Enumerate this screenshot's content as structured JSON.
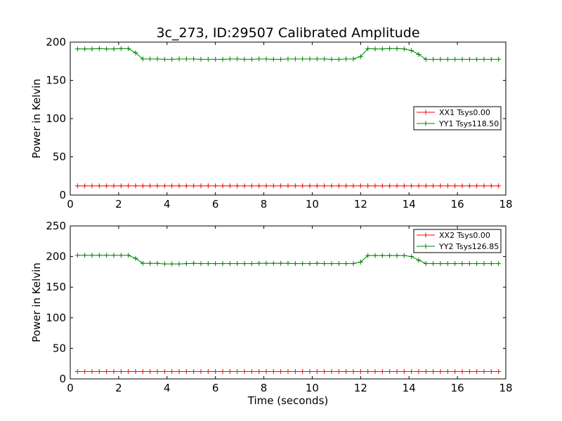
{
  "figure": {
    "title": "3c_273, ID:29507 Calibrated Amplitude",
    "xlabel": "Time (seconds)"
  },
  "chart_data": [
    {
      "type": "line",
      "ylabel": "Power in Kelvin",
      "xlim": [
        0,
        18
      ],
      "ylim": [
        0,
        200
      ],
      "xticks": [
        0,
        2,
        4,
        6,
        8,
        10,
        12,
        14,
        16,
        18
      ],
      "yticks": [
        0,
        50,
        100,
        150,
        200
      ],
      "grid": false,
      "legend_position": "center-right",
      "x": [
        0.3,
        0.6,
        0.9,
        1.2,
        1.5,
        1.8,
        2.1,
        2.4,
        2.7,
        3.0,
        3.3,
        3.6,
        3.9,
        4.2,
        4.5,
        4.8,
        5.1,
        5.4,
        5.7,
        6.0,
        6.3,
        6.6,
        6.9,
        7.2,
        7.5,
        7.8,
        8.1,
        8.4,
        8.7,
        9.0,
        9.3,
        9.6,
        9.9,
        10.2,
        10.5,
        10.8,
        11.1,
        11.4,
        11.7,
        12.0,
        12.3,
        12.6,
        12.9,
        13.2,
        13.5,
        13.8,
        14.1,
        14.4,
        14.7,
        15.0,
        15.3,
        15.6,
        15.9,
        16.2,
        16.5,
        16.8,
        17.1,
        17.4,
        17.7
      ],
      "series": [
        {
          "name": "XX1 Tsys0.00",
          "color": "#ff0000",
          "values": [
            12,
            12,
            12,
            12,
            12,
            12,
            12,
            12,
            12,
            12,
            12,
            12,
            12,
            12,
            12,
            12,
            12,
            12,
            12,
            12,
            12,
            12,
            12,
            12,
            12,
            12,
            12,
            12,
            12,
            12,
            12,
            12,
            12,
            12,
            12,
            12,
            12,
            12,
            12,
            12,
            12,
            12,
            12,
            12,
            12,
            12,
            12,
            12,
            12,
            12,
            12,
            12,
            12,
            12,
            12,
            12,
            12,
            12,
            12
          ]
        },
        {
          "name": "YY1 Tsys118.50",
          "color": "#008000",
          "values": [
            191,
            191,
            191,
            191.5,
            191,
            191,
            191.5,
            191.5,
            186,
            178,
            178,
            178,
            177.5,
            177.5,
            178,
            178,
            178,
            177.5,
            177.5,
            177.5,
            177.5,
            178,
            178,
            177.5,
            177.5,
            178,
            178,
            177.5,
            177.5,
            178,
            178,
            178,
            178,
            178,
            178,
            177.5,
            177.5,
            178,
            178,
            181,
            191.5,
            191,
            191,
            191.5,
            191.5,
            191,
            189,
            184,
            177.5,
            177.5,
            177.5,
            177.5,
            177.5,
            177.5,
            177.5,
            177.5,
            177.5,
            177.5,
            177.5
          ]
        }
      ]
    },
    {
      "type": "line",
      "ylabel": "Power in Kelvin",
      "xlabel": "Time (seconds)",
      "xlim": [
        0,
        18
      ],
      "ylim": [
        0,
        250
      ],
      "xticks": [
        0,
        2,
        4,
        6,
        8,
        10,
        12,
        14,
        16,
        18
      ],
      "yticks": [
        0,
        50,
        100,
        150,
        200,
        250
      ],
      "grid": false,
      "legend_position": "top-right",
      "x": [
        0.3,
        0.6,
        0.9,
        1.2,
        1.5,
        1.8,
        2.1,
        2.4,
        2.7,
        3.0,
        3.3,
        3.6,
        3.9,
        4.2,
        4.5,
        4.8,
        5.1,
        5.4,
        5.7,
        6.0,
        6.3,
        6.6,
        6.9,
        7.2,
        7.5,
        7.8,
        8.1,
        8.4,
        8.7,
        9.0,
        9.3,
        9.6,
        9.9,
        10.2,
        10.5,
        10.8,
        11.1,
        11.4,
        11.7,
        12.0,
        12.3,
        12.6,
        12.9,
        13.2,
        13.5,
        13.8,
        14.1,
        14.4,
        14.7,
        15.0,
        15.3,
        15.6,
        15.9,
        16.2,
        16.5,
        16.8,
        17.1,
        17.4,
        17.7
      ],
      "series": [
        {
          "name": "XX2 Tsys0.00",
          "color": "#ff0000",
          "values": [
            12,
            12,
            12,
            12,
            12,
            12,
            12,
            12,
            12,
            12,
            12,
            12,
            12,
            12,
            12,
            12,
            12,
            12,
            12,
            12,
            12,
            12,
            12,
            12,
            12,
            12,
            12,
            12,
            12,
            12,
            12,
            12,
            12,
            12,
            12,
            12,
            12,
            12,
            12,
            12,
            12,
            12,
            12,
            12,
            12,
            12,
            12,
            12,
            12,
            12,
            12,
            12,
            12,
            12,
            12,
            12,
            12,
            12,
            12
          ]
        },
        {
          "name": "YY2 Tsys126.85",
          "color": "#008000",
          "values": [
            202,
            202,
            202,
            202,
            202,
            202,
            202,
            202,
            197,
            189,
            189,
            189,
            188,
            188,
            188,
            188.5,
            189,
            188.5,
            188.5,
            188.5,
            188.5,
            188.5,
            188.5,
            188.5,
            188.5,
            189,
            189,
            189,
            189,
            189,
            188.5,
            188.5,
            188.5,
            189,
            188.5,
            188.5,
            188.5,
            188.5,
            188.5,
            191,
            201.5,
            201.5,
            201.5,
            201.5,
            201.5,
            201.5,
            200,
            194,
            188.5,
            188.5,
            188.5,
            188.5,
            188.5,
            188.5,
            188.5,
            188.5,
            188.5,
            188.5,
            188.5
          ]
        }
      ]
    }
  ]
}
